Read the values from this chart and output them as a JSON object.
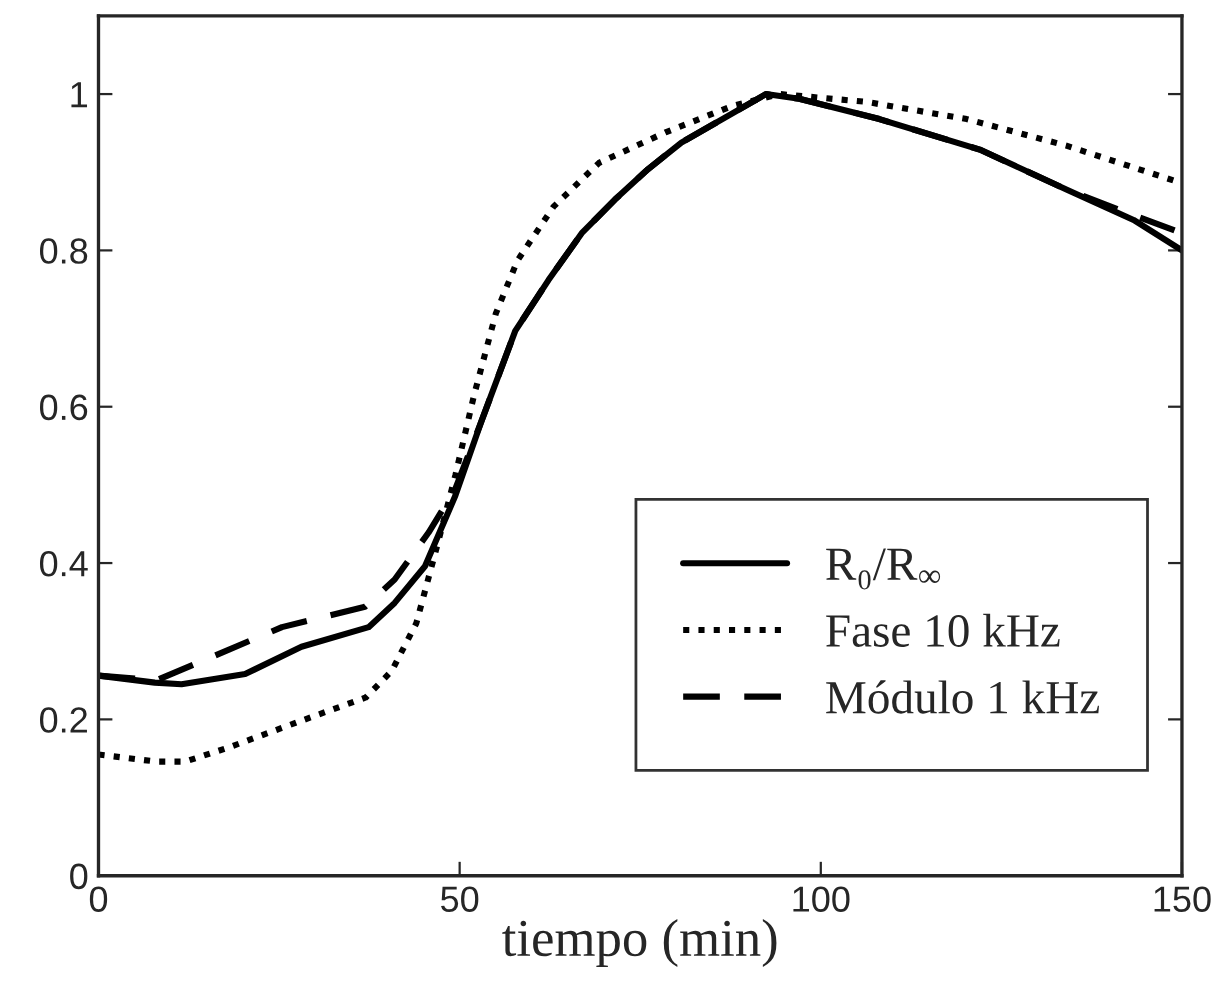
{
  "chart_data": {
    "type": "line",
    "xlabel": "tiempo (min)",
    "xlim": [
      0,
      150
    ],
    "ylim": [
      0,
      1.1
    ],
    "xticks": [
      0,
      50,
      100,
      150
    ],
    "yticks": [
      0,
      0.2,
      0.4,
      0.6,
      0.8,
      1
    ],
    "grid": false,
    "legend": "right",
    "marker": "none",
    "series": [
      {
        "name": "R₀/R$_{∞}$",
        "color": "#000000",
        "line_style": "solid",
        "x": [
          0,
          7.8,
          11.5,
          20.3,
          28.1,
          37.4,
          41,
          45.2,
          49.4,
          53,
          57.7,
          62.3,
          66.9,
          71.5,
          76.1,
          80.7,
          92.4,
          97,
          108.1,
          122,
          134,
          143.3,
          150
        ],
        "values": [
          0.256,
          0.247,
          0.245,
          0.258,
          0.293,
          0.318,
          0.349,
          0.396,
          0.486,
          0.581,
          0.697,
          0.762,
          0.822,
          0.865,
          0.904,
          0.938,
          1.0,
          0.994,
          0.968,
          0.929,
          0.878,
          0.839,
          0.8
        ]
      },
      {
        "name": "Fase 10 kHz",
        "color": "#000000",
        "line_style": "dotted",
        "x": [
          0,
          8,
          12,
          18,
          28,
          37,
          40.6,
          44,
          47,
          49.4,
          52,
          55,
          58,
          63,
          69.3,
          78.5,
          87.8,
          94.3,
          106.3,
          120.2,
          134,
          150
        ],
        "values": [
          0.155,
          0.146,
          0.146,
          0.164,
          0.198,
          0.228,
          0.262,
          0.323,
          0.426,
          0.512,
          0.615,
          0.719,
          0.787,
          0.856,
          0.912,
          0.951,
          0.985,
          1.0,
          0.99,
          0.968,
          0.934,
          0.886
        ]
      },
      {
        "name": "Módulo 1 kHz",
        "color": "#000000",
        "line_style": "dashed",
        "x": [
          0,
          8,
          13.4,
          25.4,
          36.9,
          41,
          45.7,
          49.4,
          53,
          57.7,
          62.3,
          66.9,
          71.5,
          76.1,
          80.7,
          92.4,
          97,
          108.1,
          122,
          134,
          143.3,
          150
        ],
        "values": [
          0.256,
          0.25,
          0.271,
          0.318,
          0.344,
          0.379,
          0.439,
          0.495,
          0.581,
          0.697,
          0.762,
          0.822,
          0.865,
          0.904,
          0.938,
          1.0,
          0.994,
          0.968,
          0.929,
          0.878,
          0.845,
          0.822
        ]
      }
    ]
  }
}
